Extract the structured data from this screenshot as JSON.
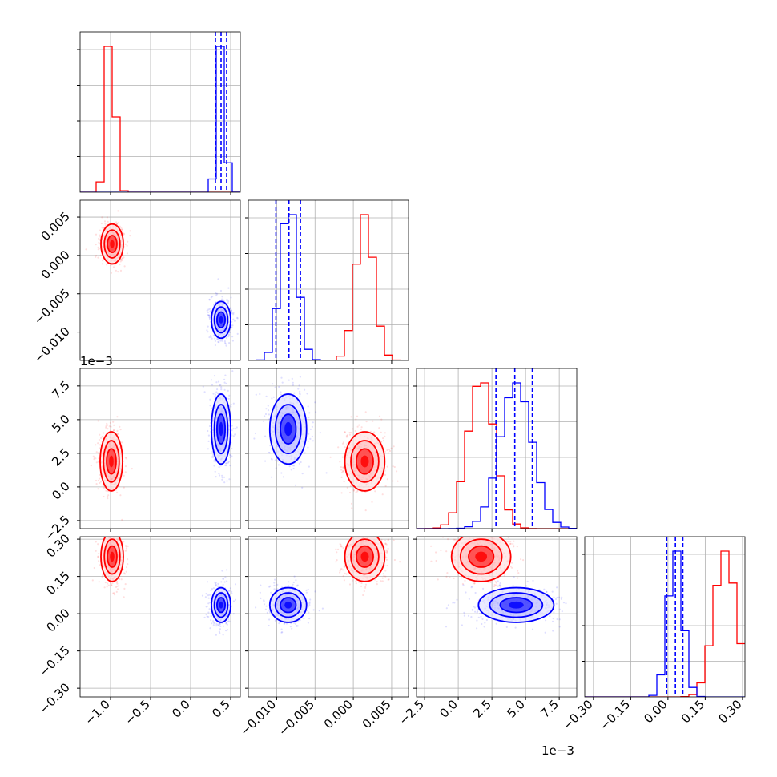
{
  "chart_data": {
    "type": "corner",
    "parameters": 4,
    "grid": true,
    "series": [
      {
        "name": "",
        "color": "#ff0000"
      },
      {
        "name": "",
        "color": "#0000ff"
      }
    ],
    "axes": [
      {
        "range": [
          -1.38,
          0.62
        ],
        "ticks": [
          -1.0,
          -0.5,
          0.0,
          0.5
        ],
        "tick_labels": [
          "−1.0",
          "−0.5",
          "0.0",
          "0.5"
        ],
        "offset_label": ""
      },
      {
        "range": [
          -0.0137,
          0.0072
        ],
        "ticks": [
          -0.01,
          -0.005,
          0.0,
          0.005
        ],
        "tick_labels": [
          "−0.010",
          "−0.005",
          "0.000",
          "0.005"
        ],
        "offset_label": ""
      },
      {
        "range": [
          -0.0031,
          0.0088
        ],
        "ticks": [
          -0.0025,
          0.0,
          0.0025,
          0.005,
          0.0075
        ],
        "tick_labels": [
          "−2.5",
          "0.0",
          "2.5",
          "5.0",
          "7.5"
        ],
        "offset_label": "1e−3"
      },
      {
        "range": [
          -0.335,
          0.31
        ],
        "ticks": [
          -0.3,
          -0.15,
          0.0,
          0.15,
          0.3
        ],
        "tick_labels": [
          "−0.30",
          "−0.15",
          "0.00",
          "0.15",
          "0.30"
        ],
        "offset_label": ""
      }
    ],
    "histograms": [
      {
        "red": {
          "peak": -1.0,
          "width": 0.055
        },
        "blue": {
          "peak": 0.38,
          "width": 0.05
        },
        "blue_quantiles": [
          0.31,
          0.38,
          0.45
        ]
      },
      {
        "red": {
          "peak": 0.0015,
          "width": 0.0012
        },
        "blue": {
          "peak": -0.0084,
          "width": 0.0011
        },
        "blue_quantiles": [
          -0.0101,
          -0.0084,
          -0.0069
        ]
      },
      {
        "red": {
          "peak": 0.0017,
          "width": 0.001
        },
        "blue": {
          "peak": 0.0043,
          "width": 0.0012
        },
        "blue_quantiles": [
          0.0028,
          0.0042,
          0.0055
        ]
      },
      {
        "red": {
          "peak": 0.23,
          "width": 0.045
        },
        "blue": {
          "peak": 0.03,
          "width": 0.03
        },
        "blue_quantiles": [
          -0.005,
          0.03,
          0.06
        ]
      }
    ],
    "clusters_2d": {
      "1-0": {
        "red": {
          "center": [
            -0.98,
            0.0015
          ],
          "spread": [
            0.07,
            0.0013
          ]
        },
        "blue": {
          "center": [
            0.38,
            -0.0084
          ],
          "spread": [
            0.06,
            0.0012
          ]
        }
      },
      "2-0": {
        "red": {
          "center": [
            -0.99,
            0.0019
          ],
          "spread": [
            0.07,
            0.0011
          ]
        },
        "blue": {
          "center": [
            0.38,
            0.0043
          ],
          "spread": [
            0.06,
            0.0013
          ]
        }
      },
      "2-1": {
        "red": {
          "center": [
            0.0015,
            0.0019
          ],
          "spread": [
            0.0013,
            0.0011
          ]
        },
        "blue": {
          "center": [
            -0.0085,
            0.0043
          ],
          "spread": [
            0.0012,
            0.0013
          ]
        }
      },
      "3-0": {
        "red": {
          "center": [
            -0.98,
            0.23
          ],
          "spread": [
            0.07,
            0.05
          ]
        },
        "blue": {
          "center": [
            0.38,
            0.035
          ],
          "spread": [
            0.06,
            0.035
          ]
        }
      },
      "3-1": {
        "red": {
          "center": [
            0.0015,
            0.23
          ],
          "spread": [
            0.0013,
            0.05
          ]
        },
        "blue": {
          "center": [
            -0.0085,
            0.035
          ],
          "spread": [
            0.0012,
            0.035
          ]
        }
      },
      "3-2": {
        "red": {
          "center": [
            0.0017,
            0.23
          ],
          "spread": [
            0.0011,
            0.05
          ]
        },
        "blue": {
          "center": [
            0.0043,
            0.035
          ],
          "spread": [
            0.0014,
            0.035
          ]
        }
      }
    }
  }
}
